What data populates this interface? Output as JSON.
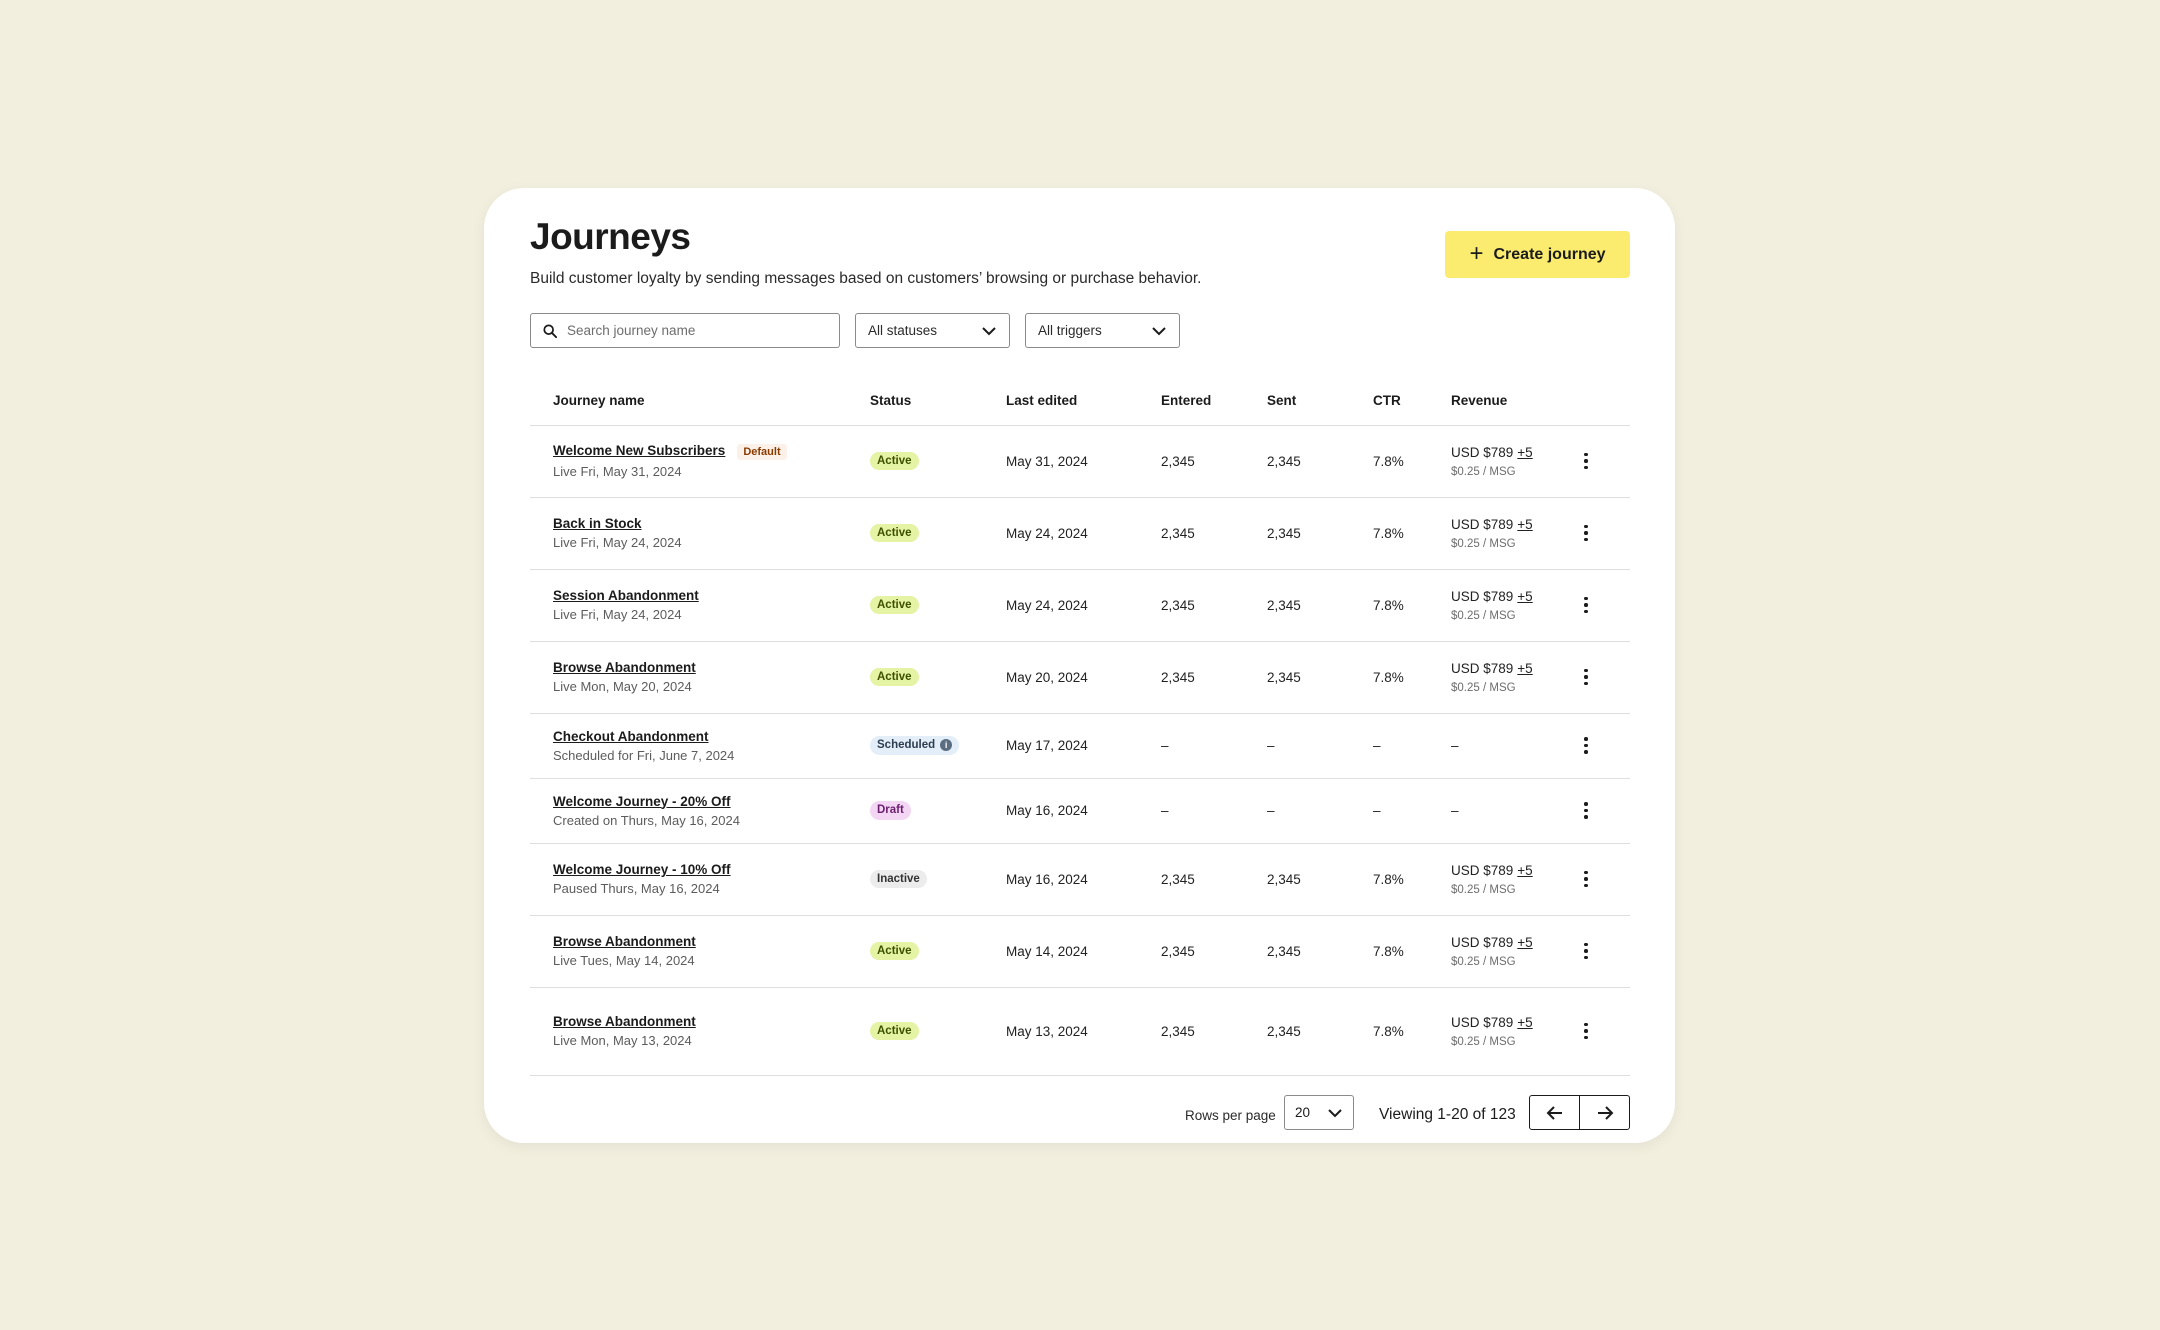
{
  "header": {
    "title": "Journeys",
    "subtitle": "Build customer loyalty by sending messages based on customers’ browsing or purchase behavior.",
    "create_label": "Create journey"
  },
  "filters": {
    "search_placeholder": "Search journey name",
    "status_value": "All statuses",
    "trigger_value": "All triggers"
  },
  "table": {
    "columns": [
      "Journey name",
      "Status",
      "Last edited",
      "Entered",
      "Sent",
      "CTR",
      "Revenue"
    ],
    "rows": [
      {
        "name": "Welcome New Subscribers",
        "tag": "Default",
        "sub": "Live Fri, May 31, 2024",
        "status": "Active",
        "status_kind": "active",
        "edited": "May 31, 2024",
        "entered": "2,345",
        "sent": "2,345",
        "ctr": "7.8%",
        "revenue": "USD $789",
        "rev_plus": "+5",
        "rev_sub": "$0.25 / MSG"
      },
      {
        "name": "Back in Stock",
        "tag": "",
        "sub": "Live Fri, May 24, 2024",
        "status": "Active",
        "status_kind": "active",
        "edited": "May 24, 2024",
        "entered": "2,345",
        "sent": "2,345",
        "ctr": "7.8%",
        "revenue": "USD $789",
        "rev_plus": "+5",
        "rev_sub": "$0.25 / MSG"
      },
      {
        "name": "Session Abandonment",
        "tag": "",
        "sub": "Live Fri, May 24, 2024",
        "status": "Active",
        "status_kind": "active",
        "edited": "May 24, 2024",
        "entered": "2,345",
        "sent": "2,345",
        "ctr": "7.8%",
        "revenue": "USD $789",
        "rev_plus": "+5",
        "rev_sub": "$0.25 / MSG"
      },
      {
        "name": "Browse Abandonment",
        "tag": "",
        "sub": "Live Mon, May 20, 2024",
        "status": "Active",
        "status_kind": "active",
        "edited": "May 20, 2024",
        "entered": "2,345",
        "sent": "2,345",
        "ctr": "7.8%",
        "revenue": "USD $789",
        "rev_plus": "+5",
        "rev_sub": "$0.25 / MSG"
      },
      {
        "name": "Checkout Abandonment",
        "tag": "",
        "sub": "Scheduled for Fri, June 7, 2024",
        "status": "Scheduled",
        "status_kind": "scheduled",
        "edited": "May 17, 2024",
        "entered": "–",
        "sent": "–",
        "ctr": "–",
        "revenue": "–",
        "rev_plus": "",
        "rev_sub": ""
      },
      {
        "name": "Welcome Journey - 20% Off",
        "tag": "",
        "sub": "Created on Thurs, May 16, 2024",
        "status": "Draft",
        "status_kind": "draft",
        "edited": "May 16, 2024",
        "entered": "–",
        "sent": "–",
        "ctr": "–",
        "revenue": "–",
        "rev_plus": "",
        "rev_sub": ""
      },
      {
        "name": "Welcome Journey - 10% Off",
        "tag": "",
        "sub": "Paused Thurs, May 16, 2024",
        "status": "Inactive",
        "status_kind": "inactive",
        "edited": "May 16, 2024",
        "entered": "2,345",
        "sent": "2,345",
        "ctr": "7.8%",
        "revenue": "USD $789",
        "rev_plus": "+5",
        "rev_sub": "$0.25 / MSG"
      },
      {
        "name": "Browse Abandonment",
        "tag": "",
        "sub": "Live Tues, May 14, 2024",
        "status": "Active",
        "status_kind": "active",
        "edited": "May 14, 2024",
        "entered": "2,345",
        "sent": "2,345",
        "ctr": "7.8%",
        "revenue": "USD $789",
        "rev_plus": "+5",
        "rev_sub": "$0.25 / MSG"
      },
      {
        "name": "Browse Abandonment",
        "tag": "",
        "sub": "Live Mon, May 13, 2024",
        "status": "Active",
        "status_kind": "active",
        "edited": "May 13, 2024",
        "entered": "2,345",
        "sent": "2,345",
        "ctr": "7.8%",
        "revenue": "USD $789",
        "rev_plus": "+5",
        "rev_sub": "$0.25 / MSG"
      }
    ]
  },
  "pagination": {
    "rows_label": "Rows per page",
    "rows_value": "20",
    "viewing": "Viewing 1-20 of 123"
  },
  "colors": {
    "background": "#f2efdf",
    "accent": "#fbec6f",
    "active_pill": "#e4f3a4",
    "scheduled_pill": "#e3eef9",
    "draft_pill": "#f2d6f4",
    "inactive_pill": "#ececec"
  },
  "icons": {
    "search": "search-icon",
    "chevron": "chevron-down-icon",
    "plus": "plus-icon",
    "menu": "kebab-menu-icon",
    "prev": "arrow-left-icon",
    "next": "arrow-right-icon",
    "info": "info-icon"
  }
}
